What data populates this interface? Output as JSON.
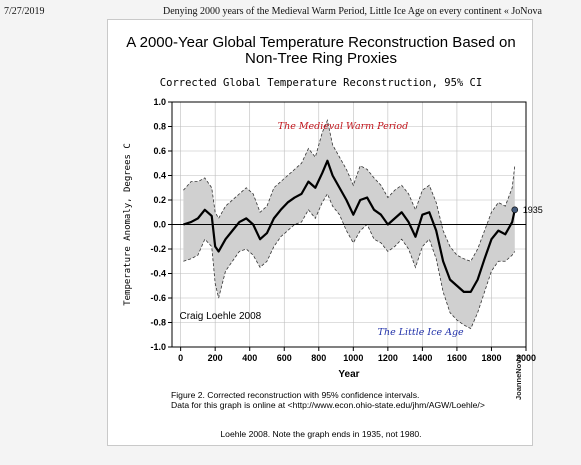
{
  "header": {
    "date": "7/27/2019",
    "title": "Denying 2000 years of the Medieval Warm Period, Little Ice Age on every continent « JoNova"
  },
  "figure": {
    "title": "A 2000-Year Global Temperature Reconstruction Based on Non-Tree Ring Proxies",
    "subtitle": "Corrected Global Temperature Reconstruction, 95% CI",
    "caption_line1": "Figure 2. Corrected reconstruction with 95% confidence intervals.",
    "caption_line2": "Data for this graph is online at <http://www.econ.ohio-state.edu/jhm/AGW/Loehle/>",
    "note": "Loehle 2008. Note the graph ends in 1935, not 1980.",
    "watermark": "JoanneNova"
  },
  "chart_data": {
    "type": "line",
    "xlabel": "Year",
    "ylabel": "Temperature Anomaly, Degrees C",
    "xlim": [
      -50,
      2000
    ],
    "ylim": [
      -1.0,
      1.0
    ],
    "xticks": [
      0,
      200,
      400,
      600,
      800,
      1000,
      1200,
      1400,
      1600,
      1800,
      2000
    ],
    "yticks": [
      -1.0,
      -0.8,
      -0.6,
      -0.4,
      -0.2,
      0.0,
      0.2,
      0.4,
      0.6,
      0.8,
      1.0
    ],
    "x": [
      16,
      60,
      100,
      140,
      180,
      200,
      220,
      260,
      300,
      340,
      380,
      420,
      460,
      500,
      540,
      580,
      620,
      660,
      700,
      740,
      780,
      820,
      850,
      880,
      920,
      960,
      1000,
      1040,
      1080,
      1120,
      1160,
      1200,
      1240,
      1280,
      1320,
      1360,
      1400,
      1440,
      1480,
      1520,
      1560,
      1600,
      1640,
      1680,
      1720,
      1760,
      1800,
      1840,
      1880,
      1920,
      1935
    ],
    "mean": [
      0.0,
      0.02,
      0.05,
      0.12,
      0.07,
      -0.18,
      -0.22,
      -0.12,
      -0.05,
      0.02,
      0.05,
      0.0,
      -0.12,
      -0.07,
      0.05,
      0.12,
      0.18,
      0.22,
      0.25,
      0.35,
      0.3,
      0.42,
      0.52,
      0.4,
      0.3,
      0.2,
      0.08,
      0.2,
      0.22,
      0.12,
      0.08,
      0.0,
      0.05,
      0.1,
      0.02,
      -0.1,
      0.08,
      0.1,
      -0.05,
      -0.3,
      -0.45,
      -0.5,
      -0.55,
      -0.55,
      -0.45,
      -0.28,
      -0.12,
      -0.05,
      -0.08,
      0.02,
      0.12
    ],
    "upper": [
      0.28,
      0.35,
      0.35,
      0.38,
      0.3,
      0.1,
      0.05,
      0.15,
      0.2,
      0.25,
      0.3,
      0.25,
      0.1,
      0.15,
      0.3,
      0.35,
      0.4,
      0.45,
      0.5,
      0.62,
      0.55,
      0.75,
      0.85,
      0.65,
      0.55,
      0.45,
      0.32,
      0.48,
      0.45,
      0.38,
      0.32,
      0.22,
      0.28,
      0.32,
      0.25,
      0.12,
      0.28,
      0.32,
      0.18,
      -0.05,
      -0.18,
      -0.25,
      -0.28,
      -0.3,
      -0.2,
      -0.05,
      0.1,
      0.18,
      0.15,
      0.3,
      0.48
    ],
    "lower": [
      -0.3,
      -0.28,
      -0.25,
      -0.12,
      -0.18,
      -0.48,
      -0.6,
      -0.38,
      -0.3,
      -0.22,
      -0.2,
      -0.25,
      -0.35,
      -0.3,
      -0.18,
      -0.1,
      -0.05,
      0.0,
      0.02,
      0.12,
      0.05,
      0.18,
      0.25,
      0.15,
      0.08,
      -0.05,
      -0.15,
      -0.05,
      0.0,
      -0.12,
      -0.15,
      -0.22,
      -0.18,
      -0.12,
      -0.2,
      -0.35,
      -0.18,
      -0.12,
      -0.28,
      -0.55,
      -0.72,
      -0.78,
      -0.82,
      -0.85,
      -0.72,
      -0.55,
      -0.38,
      -0.3,
      -0.3,
      -0.25,
      -0.22
    ],
    "end_point": {
      "x": 1935,
      "y": 0.12,
      "label": "1935"
    },
    "annotations": [
      {
        "text": "The Medieval Warm Period",
        "x": 940,
        "y": 0.78,
        "color": "#c0141b"
      },
      {
        "text": "The Little Ice Age",
        "x": 1390,
        "y": -0.9,
        "color": "#1f2fa8"
      },
      {
        "text": "Craig Loehle 2008",
        "x": 230,
        "y": -0.77,
        "color": "#000000"
      }
    ],
    "grid": true,
    "zero_line": true,
    "colors": {
      "band": "#d0d0d0",
      "band_edge": "#333333",
      "line": "#000000",
      "grid": "#bdbdbd"
    }
  }
}
